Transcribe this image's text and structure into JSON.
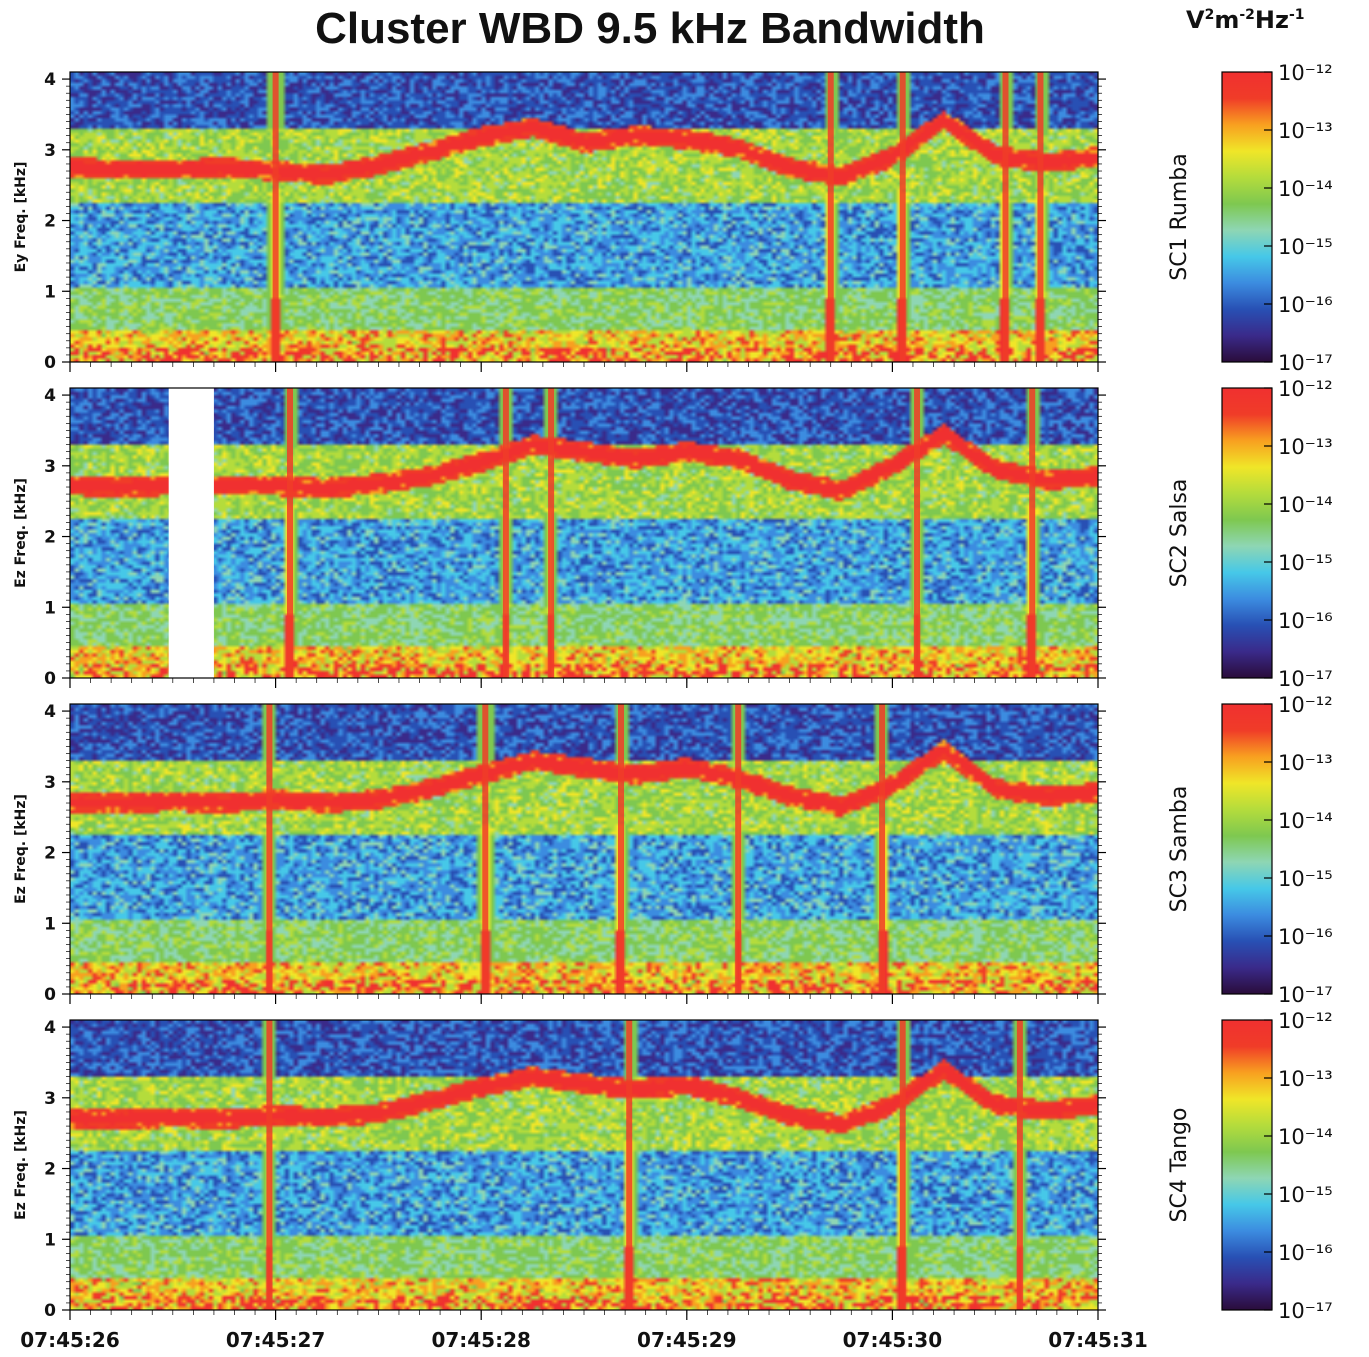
{
  "title": "Cluster WBD 9.5 kHz Bandwidth",
  "units": {
    "base": "V",
    "sup1": "2",
    "mid": "m",
    "sup2": "-2",
    "hz": "Hz",
    "sup3": "-1"
  },
  "chart_data": {
    "type": "heatmap",
    "title": "Cluster WBD 9.5 kHz Bandwidth",
    "x_tick_labels": [
      "07:45:26",
      "07:45:27",
      "07:45:28",
      "07:45:29",
      "07:45:30",
      "07:45:31"
    ],
    "x_range": [
      "07:45:26",
      "07:45:31"
    ],
    "y_ticks": [
      0,
      1,
      2,
      3,
      4
    ],
    "y_range_khz": [
      0,
      4.1
    ],
    "colorbar": {
      "label": "V²m⁻²Hz⁻¹",
      "scale": "log",
      "range": [
        1e-17,
        1e-12
      ],
      "tick_labels": [
        "10⁻¹²",
        "10⁻¹³",
        "10⁻¹⁴",
        "10⁻¹⁵",
        "10⁻¹⁶",
        "10⁻¹⁷"
      ]
    },
    "panels": [
      {
        "spacecraft": "SC1 Rumba",
        "ylabel": "Ey Freq. [kHz]",
        "emission_khz": [
          2.75,
          2.72,
          2.72,
          2.75,
          2.7,
          2.65,
          2.78,
          2.98,
          3.18,
          3.32,
          3.1,
          3.2,
          3.15,
          3.02,
          2.75,
          2.62,
          2.9,
          3.42,
          2.92,
          2.82,
          2.9
        ],
        "spikes_s": [
          1.0,
          3.7,
          4.05,
          4.55,
          4.72
        ],
        "gap_s": null
      },
      {
        "spacecraft": "SC2 Salsa",
        "ylabel": "Ez Freq. [kHz]",
        "emission_khz": [
          2.72,
          2.7,
          2.72,
          2.72,
          2.72,
          2.68,
          2.75,
          2.85,
          3.05,
          3.3,
          3.2,
          3.1,
          3.2,
          3.1,
          2.8,
          2.65,
          3.0,
          3.45,
          2.95,
          2.8,
          2.85
        ],
        "spikes_s": [
          1.07,
          2.12,
          2.34,
          4.12,
          4.68
        ],
        "gap_s": [
          0.48,
          0.7
        ]
      },
      {
        "spacecraft": "SC3 Samba",
        "ylabel": "Ez Freq. [kHz]",
        "emission_khz": [
          2.7,
          2.7,
          2.72,
          2.7,
          2.75,
          2.7,
          2.75,
          2.9,
          3.1,
          3.3,
          3.2,
          3.1,
          3.2,
          3.05,
          2.8,
          2.65,
          2.95,
          3.45,
          2.9,
          2.8,
          2.85
        ],
        "spikes_s": [
          0.97,
          2.02,
          2.68,
          3.25,
          3.95
        ],
        "gap_s": null
      },
      {
        "spacecraft": "SC4 Tango",
        "ylabel": "Ez Freq. [kHz]",
        "emission_khz": [
          2.7,
          2.7,
          2.72,
          2.7,
          2.75,
          2.72,
          2.78,
          2.95,
          3.15,
          3.3,
          3.2,
          3.12,
          3.18,
          3.0,
          2.75,
          2.62,
          2.9,
          3.4,
          2.9,
          2.82,
          2.9
        ],
        "spikes_s": [
          0.97,
          2.72,
          4.05,
          4.62
        ],
        "gap_s": null
      }
    ],
    "colormap": [
      "#2a0c3a",
      "#3a2a8a",
      "#2850b4",
      "#3c8ce0",
      "#46c8e8",
      "#8ed6b4",
      "#7ec850",
      "#b4dc3c",
      "#f0e628",
      "#f8a020",
      "#f03c28",
      "#f03030"
    ]
  }
}
